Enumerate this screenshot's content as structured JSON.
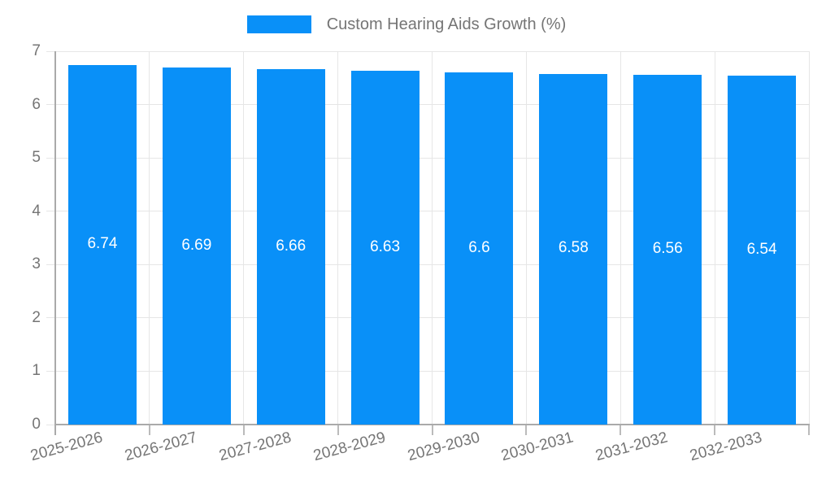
{
  "legend": {
    "label": "Custom Hearing Aids Growth (%)"
  },
  "chart_data": {
    "type": "bar",
    "title": "Custom Hearing Aids Growth (%)",
    "categories": [
      "2025-2026",
      "2026-2027",
      "2027-2028",
      "2028-2029",
      "2029-2030",
      "2030-2031",
      "2031-2032",
      "2032-2033"
    ],
    "values": [
      6.74,
      6.69,
      6.66,
      6.63,
      6.6,
      6.58,
      6.56,
      6.54
    ],
    "xlabel": "",
    "ylabel": "",
    "ylim": [
      0,
      7
    ],
    "yticks": [
      0,
      1,
      2,
      3,
      4,
      5,
      6,
      7
    ],
    "grid": true,
    "legend_position": "top",
    "x_label_rotation_deg": -15,
    "bar_label_color": "#ffffff",
    "colors": {
      "bar": "#0990f8",
      "axis_text": "#757575",
      "gridline": "#e6e6e6",
      "axis_line": "#aaaaaa",
      "tick": "#bbbbbb"
    }
  }
}
